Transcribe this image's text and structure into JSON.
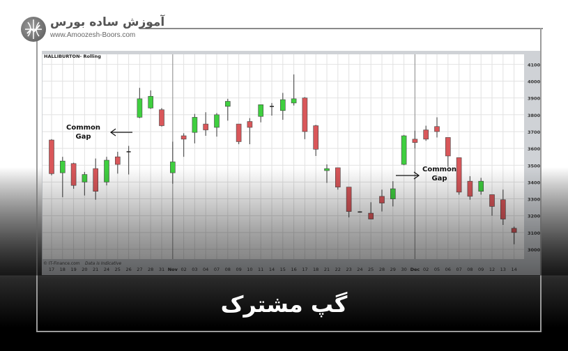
{
  "brand": {
    "name_fa": "آموزش ساده بورس",
    "url": "www.Amoozesh-Boors.com"
  },
  "headline": "گپ مشترک",
  "chart_data": {
    "type": "candlestick",
    "title": "HALLIBURTON- Rolling",
    "footer_left": "© IT-Finance.com",
    "footer_note": "Data is Indicative",
    "ylim": [
      3000,
      4100
    ],
    "yticks": [
      4100,
      4000,
      3900,
      3800,
      3700,
      3600,
      3500,
      3400,
      3300,
      3200,
      3100,
      3000
    ],
    "grid": true,
    "categories": [
      "17",
      "18",
      "19",
      "20",
      "21",
      "24",
      "25",
      "26",
      "27",
      "28",
      "31",
      "Nov",
      "02",
      "03",
      "04",
      "07",
      "08",
      "09",
      "10",
      "11",
      "14",
      "15",
      "16",
      "17",
      "18",
      "21",
      "22",
      "23",
      "24",
      "25",
      "28",
      "29",
      "30",
      "Dec",
      "02",
      "05",
      "06",
      "07",
      "08",
      "09",
      "12",
      "13",
      "14"
    ],
    "month_separators": [
      "Nov",
      "Dec"
    ],
    "ohlc": [
      [
        3650,
        3655,
        3440,
        3450
      ],
      [
        3455,
        3550,
        3310,
        3525
      ],
      [
        3510,
        3515,
        3360,
        3380
      ],
      [
        3400,
        3460,
        3320,
        3445
      ],
      [
        3480,
        3540,
        3295,
        3345
      ],
      [
        3400,
        3550,
        3380,
        3530
      ],
      [
        3550,
        3580,
        3450,
        3505
      ],
      [
        3580,
        3615,
        3445,
        3580
      ],
      [
        3785,
        3960,
        3780,
        3895
      ],
      [
        3840,
        3945,
        3835,
        3910
      ],
      [
        3830,
        3840,
        3730,
        3735
      ],
      [
        3455,
        3640,
        3390,
        3520
      ],
      [
        3675,
        3690,
        3550,
        3655
      ],
      [
        3695,
        3805,
        3630,
        3785
      ],
      [
        3745,
        3815,
        3675,
        3710
      ],
      [
        3725,
        3810,
        3670,
        3800
      ],
      [
        3850,
        3895,
        3765,
        3880
      ],
      [
        3745,
        3745,
        3625,
        3640
      ],
      [
        3760,
        3780,
        3625,
        3725
      ],
      [
        3790,
        3860,
        3755,
        3860
      ],
      [
        3850,
        3870,
        3795,
        3850
      ],
      [
        3825,
        3930,
        3770,
        3890
      ],
      [
        3870,
        4040,
        3855,
        3895
      ],
      [
        3900,
        3905,
        3655,
        3700
      ],
      [
        3735,
        3740,
        3555,
        3595
      ],
      [
        3468,
        3505,
        3395,
        3480
      ],
      [
        3485,
        3485,
        3355,
        3370
      ],
      [
        3370,
        3370,
        3190,
        3225
      ],
      [
        3222,
        3225,
        3220,
        3222
      ],
      [
        3215,
        3280,
        3178,
        3180
      ],
      [
        3315,
        3355,
        3225,
        3275
      ],
      [
        3300,
        3405,
        3255,
        3360
      ],
      [
        3505,
        3680,
        3500,
        3675
      ],
      [
        3655,
        3705,
        3600,
        3635
      ],
      [
        3710,
        3735,
        3645,
        3655
      ],
      [
        3730,
        3785,
        3665,
        3700
      ],
      [
        3665,
        3665,
        3490,
        3555
      ],
      [
        3545,
        3545,
        3325,
        3340
      ],
      [
        3405,
        3435,
        3295,
        3315
      ],
      [
        3345,
        3425,
        3325,
        3405
      ],
      [
        3325,
        3325,
        3200,
        3255
      ],
      [
        3295,
        3355,
        3145,
        3180
      ],
      [
        3125,
        3135,
        3030,
        3100
      ]
    ],
    "ohlc_fields": [
      "open",
      "high",
      "low",
      "close"
    ],
    "colors": {
      "up": "#3fcf3f",
      "down": "#d9575a",
      "wick": "#555555",
      "grid": "#e2e2e2",
      "axis_panel": "#cfd2d6"
    },
    "annotations": [
      {
        "line1": "Common",
        "line2": "Gap",
        "arrow": "left"
      },
      {
        "line1": "Common",
        "line2": "Gap",
        "arrow": "right"
      }
    ]
  }
}
